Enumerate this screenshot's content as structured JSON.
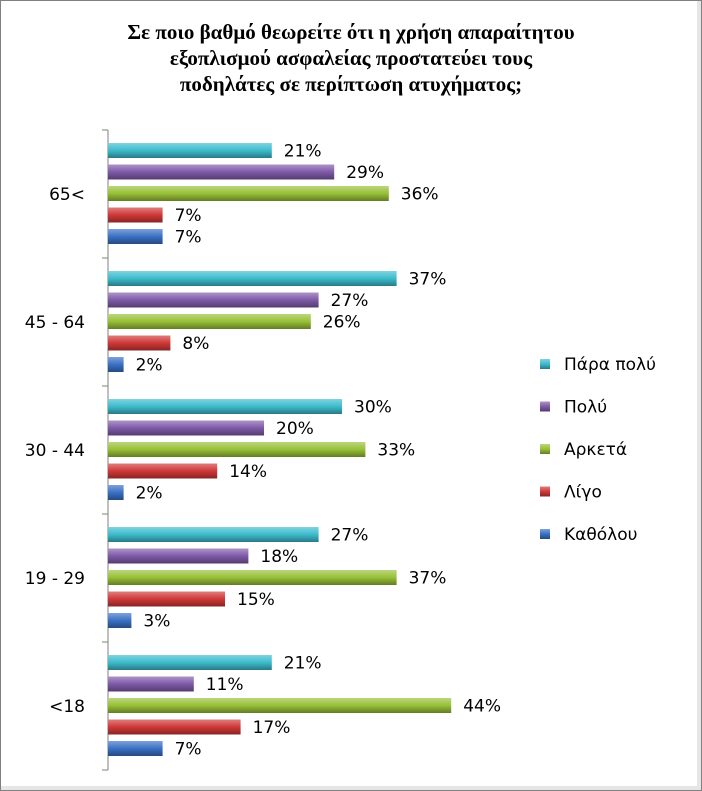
{
  "chart_data": {
    "type": "bar",
    "orientation": "horizontal",
    "title": "Σε ποιο βαθμό θεωρείτε ότι η χρήση απαραίτητου εξοπλισμού ασφαλείας προστατεύει τους ποδηλάτες σε περίπτωση ατυχήματος;",
    "title_lines": [
      "Σε ποιο βαθμό θεωρείτε ότι η χρήση απαραίτητου",
      "εξοπλισμού ασφαλείας προστατεύει τους",
      "ποδηλάτες σε περίπτωση ατυχήματος;"
    ],
    "categories": [
      "65<",
      "45 - 64",
      "30 - 44",
      "19 - 29",
      "<18"
    ],
    "series": [
      {
        "name": "Πάρα πολύ",
        "color": "#3cbccc",
        "values": [
          21,
          37,
          30,
          27,
          21
        ]
      },
      {
        "name": "Πολύ",
        "color": "#7f5aa8",
        "values": [
          29,
          27,
          20,
          18,
          11
        ]
      },
      {
        "name": "Αρκετά",
        "color": "#98c038",
        "values": [
          36,
          26,
          33,
          37,
          44
        ]
      },
      {
        "name": "Λίγο",
        "color": "#d03838",
        "values": [
          7,
          8,
          14,
          15,
          17
        ]
      },
      {
        "name": "Καθόλου",
        "color": "#3a70c4",
        "values": [
          7,
          2,
          2,
          3,
          7
        ]
      }
    ],
    "value_suffix": "%",
    "xlim": [
      0,
      50
    ],
    "grid": false,
    "legend": "right"
  }
}
